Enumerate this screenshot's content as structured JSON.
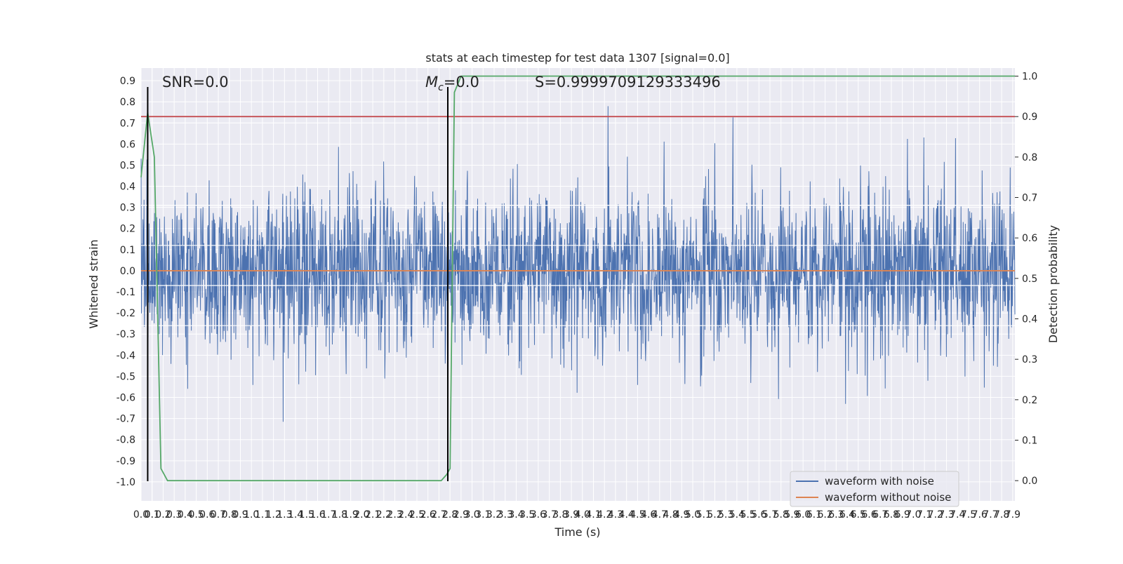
{
  "chart_data": {
    "type": "line",
    "title": "stats at each timestep for test data 1307 [signal=0.0]",
    "xlabel": "Time (s)",
    "ylabel_left": "Whitened strain",
    "ylabel_right": "Detection probability",
    "annotations": {
      "snr": "SNR=0.0",
      "mc_symbol": "M",
      "mc_subscript": "c",
      "mc_value": "=0.0",
      "s": "S=0.9999709129333496"
    },
    "xlim": [
      0.0,
      7.92
    ],
    "ylim_left": [
      -1.09,
      0.96
    ],
    "ylim_right": [
      -0.05,
      1.02
    ],
    "grid": true,
    "legend_position": "lower-right",
    "x_ticks": [
      "0.0",
      "0.1",
      "0.1",
      "0.2",
      "0.3",
      "0.4",
      "0.5",
      "0.6",
      "0.7",
      "0.8",
      "0.9",
      "1.0",
      "1.1",
      "1.2",
      "1.3",
      "1.4",
      "1.5",
      "1.6",
      "1.7",
      "1.8",
      "1.9",
      "2.0",
      "2.1",
      "2.2",
      "2.3",
      "2.4",
      "2.5",
      "2.6",
      "2.7",
      "2.8",
      "2.9",
      "3.0",
      "3.1",
      "3.2",
      "3.3",
      "3.4",
      "3.5",
      "3.6",
      "3.7",
      "3.8",
      "3.9",
      "4.0",
      "4.1",
      "4.2",
      "4.3",
      "4.4",
      "4.5",
      "4.6",
      "4.7",
      "4.8",
      "4.9",
      "5.0",
      "5.1",
      "5.2",
      "5.3",
      "5.4",
      "5.5",
      "5.6",
      "5.7",
      "5.8",
      "5.9",
      "6.0",
      "6.1",
      "6.2",
      "6.3",
      "6.4",
      "6.5",
      "6.6",
      "6.7",
      "6.8",
      "6.9",
      "7.0",
      "7.1",
      "7.2",
      "7.3",
      "7.4",
      "7.5",
      "7.6",
      "7.7",
      "7.8",
      "7.9"
    ],
    "y_ticks_left": [
      "0.9",
      "0.8",
      "0.7",
      "0.6",
      "0.5",
      "0.4",
      "0.3",
      "0.2",
      "0.1",
      "0.0",
      "-0.1",
      "-0.2",
      "-0.3",
      "-0.4",
      "-0.5",
      "-0.6",
      "-0.7",
      "-0.8",
      "-0.9",
      "-1.0"
    ],
    "y_ticks_right": [
      "1.0",
      "0.9",
      "0.8",
      "0.7",
      "0.6",
      "0.5",
      "0.4",
      "0.3",
      "0.2",
      "0.1",
      "0.0"
    ],
    "series": [
      {
        "name": "waveform with noise",
        "color": "#4c72b0",
        "axis": "left",
        "note": "dense noise trace, bulk within about ±0.3 with spikes to about ±0.85"
      },
      {
        "name": "waveform without noise",
        "color": "#dd8452",
        "axis": "left",
        "x": [
          0.0,
          7.92
        ],
        "y": [
          0.0,
          0.0
        ]
      },
      {
        "name": "",
        "color": "#55a868",
        "axis": "right",
        "x": [
          0.0,
          0.06,
          0.12,
          0.18,
          0.24,
          2.72,
          2.77,
          2.8,
          2.84,
          2.9,
          7.92
        ],
        "y": [
          0.75,
          0.91,
          0.8,
          0.03,
          0.0,
          0.0,
          0.015,
          0.03,
          0.96,
          1.0,
          1.0
        ]
      }
    ],
    "threshold": {
      "axis": "right",
      "value": 0.9,
      "color": "#c44e52"
    },
    "vertical_markers": [
      0.06,
      2.78
    ],
    "horizontal_lines_left": [
      0.31,
      0.12,
      -0.07,
      -0.26
    ]
  }
}
